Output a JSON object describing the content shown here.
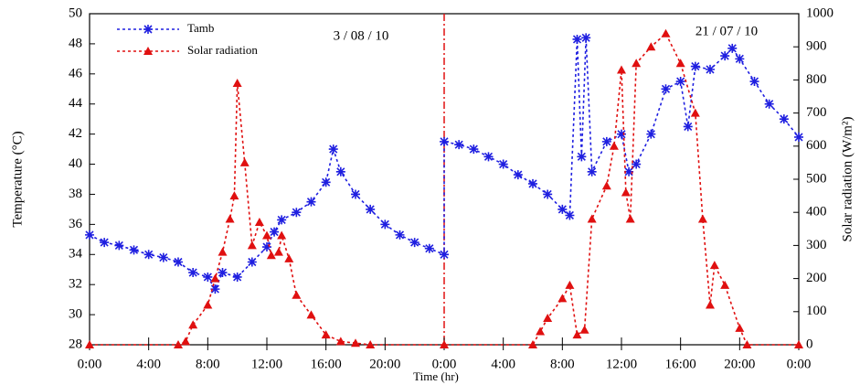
{
  "chart_data": {
    "type": "line",
    "xlabel": "Time (hr)",
    "ylabel": "Temperature (°C)",
    "y2label": "Solar radiation (W/m²)",
    "annotations": [
      "3 / 08 / 10",
      "21 / 07 / 10"
    ],
    "xlim": [
      0,
      48
    ],
    "xticks": [
      {
        "value": 0,
        "label": "0:00"
      },
      {
        "value": 4,
        "label": "4:00"
      },
      {
        "value": 8,
        "label": "8:00"
      },
      {
        "value": 12,
        "label": "12:00"
      },
      {
        "value": 16,
        "label": "16:00"
      },
      {
        "value": 20,
        "label": "20:00"
      },
      {
        "value": 24,
        "label": "0:00"
      },
      {
        "value": 28,
        "label": "4:00"
      },
      {
        "value": 32,
        "label": "8:00"
      },
      {
        "value": 36,
        "label": "12:00"
      },
      {
        "value": 40,
        "label": "16:00"
      },
      {
        "value": 44,
        "label": "20:00"
      },
      {
        "value": 48,
        "label": "0:00"
      }
    ],
    "ylim": [
      28,
      50
    ],
    "yticks": [
      28,
      30,
      32,
      34,
      36,
      38,
      40,
      42,
      44,
      46,
      48,
      50
    ],
    "y2lim": [
      0,
      1000
    ],
    "y2ticks": [
      0,
      100,
      200,
      300,
      400,
      500,
      600,
      700,
      800,
      900,
      1000
    ],
    "series": [
      {
        "name": "Tamb",
        "color": "#1f1fe0",
        "marker": "star",
        "x": [
          0,
          1,
          2,
          3,
          4,
          5,
          6,
          7,
          8,
          8.5,
          9,
          10,
          11,
          12,
          12.5,
          13,
          14,
          15,
          16,
          16.5,
          17,
          18,
          19,
          20,
          21,
          22,
          23,
          24,
          24,
          25,
          26,
          27,
          28,
          29,
          30,
          31,
          32,
          32.5,
          33,
          33.3,
          33.6,
          34,
          35,
          36,
          36.5,
          37,
          38,
          39,
          40,
          40.5,
          41,
          42,
          43,
          43.5,
          44,
          45,
          46,
          47,
          48
        ],
        "values": [
          35.3,
          34.8,
          34.6,
          34.3,
          34.0,
          33.8,
          33.5,
          32.8,
          32.5,
          31.7,
          32.8,
          32.5,
          33.5,
          34.5,
          35.5,
          36.3,
          36.8,
          37.5,
          38.8,
          41.0,
          39.5,
          38.0,
          37.0,
          36.0,
          35.3,
          34.8,
          34.4,
          34.0,
          41.5,
          41.3,
          41.0,
          40.5,
          40.0,
          39.3,
          38.7,
          38.0,
          37.0,
          36.6,
          48.3,
          40.5,
          48.4,
          39.5,
          41.5,
          42.0,
          39.5,
          40.0,
          42.0,
          45.0,
          45.5,
          42.5,
          46.5,
          46.3,
          47.2,
          47.7,
          47.0,
          45.5,
          44.0,
          43.0,
          41.8
        ]
      },
      {
        "name": "Solar radiation",
        "color": "#e01010",
        "marker": "triangle",
        "axis": "y2",
        "x": [
          0,
          6,
          6.5,
          7,
          8,
          8.5,
          9,
          9.5,
          9.8,
          10,
          10.5,
          11,
          11.5,
          12,
          12.3,
          12.8,
          13,
          13.5,
          14,
          15,
          16,
          17,
          18,
          19,
          24,
          30,
          30.5,
          31,
          32,
          32.5,
          33,
          33.5,
          34,
          35,
          35.5,
          36,
          36.3,
          36.6,
          37,
          38,
          39,
          40,
          41,
          41.5,
          42,
          42.3,
          43,
          44,
          44.5,
          48
        ],
        "values": [
          0,
          0,
          10,
          60,
          120,
          200,
          280,
          380,
          450,
          790,
          550,
          300,
          370,
          330,
          270,
          280,
          330,
          260,
          150,
          90,
          30,
          10,
          5,
          0,
          0,
          0,
          40,
          80,
          140,
          180,
          30,
          45,
          380,
          480,
          600,
          830,
          460,
          380,
          850,
          900,
          940,
          850,
          700,
          380,
          120,
          240,
          180,
          50,
          0,
          0
        ]
      }
    ]
  }
}
